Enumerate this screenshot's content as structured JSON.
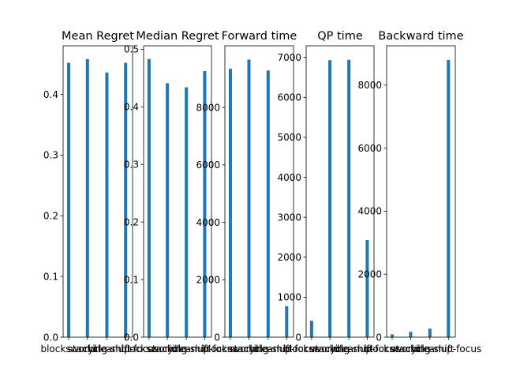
{
  "figure": {
    "background": "#ffffff",
    "bar_color": "#1f77b4"
  },
  "chart_data": [
    {
      "type": "bar",
      "title": "Mean Regret",
      "categories": [
        "blocksworld",
        "stacking",
        "cycle-shift",
        "cleanup-focus"
      ],
      "values": [
        0.452,
        0.458,
        0.436,
        0.452
      ],
      "ylim": [
        0,
        0.48
      ],
      "yticks": [
        "0.0",
        "0.1",
        "0.2",
        "0.3",
        "0.4"
      ],
      "ytick_values": [
        0,
        0.1,
        0.2,
        0.3,
        0.4
      ],
      "xlabel": "",
      "ylabel": ""
    },
    {
      "type": "bar",
      "title": "Median Regret",
      "categories": [
        "blocksworld",
        "stacking",
        "cycle-shift",
        "cleanup-focus"
      ],
      "values": [
        0.483,
        0.441,
        0.434,
        0.462
      ],
      "ylim": [
        0,
        0.506
      ],
      "yticks": [
        "0.0",
        "0.1",
        "0.2",
        "0.3",
        "0.4",
        "0.5"
      ],
      "ytick_values": [
        0,
        0.1,
        0.2,
        0.3,
        0.4,
        0.5
      ],
      "xlabel": "",
      "ylabel": ""
    },
    {
      "type": "bar",
      "title": "Forward time",
      "categories": [
        "blocksworld",
        "stacking",
        "cycle-shift",
        "cleanup-focus"
      ],
      "values": [
        9350,
        9670,
        9290,
        1080
      ],
      "ylim": [
        0,
        10150
      ],
      "yticks": [
        "0",
        "2000",
        "4000",
        "6000",
        "8000"
      ],
      "ytick_values": [
        0,
        2000,
        4000,
        6000,
        8000
      ],
      "xlabel": "",
      "ylabel": ""
    },
    {
      "type": "bar",
      "title": "QP time",
      "categories": [
        "blocksworld",
        "stacking",
        "cycle-shift",
        "cleanup-focus"
      ],
      "values": [
        410,
        6930,
        6940,
        2430
      ],
      "ylim": [
        0,
        7290
      ],
      "yticks": [
        "0",
        "1000",
        "2000",
        "3000",
        "4000",
        "5000",
        "6000",
        "7000"
      ],
      "ytick_values": [
        0,
        1000,
        2000,
        3000,
        4000,
        5000,
        6000,
        7000
      ],
      "xlabel": "",
      "ylabel": ""
    },
    {
      "type": "bar",
      "title": "Backward time",
      "categories": [
        "blocksworld",
        "stacking",
        "cycle-shift",
        "cleanup-focus"
      ],
      "values": [
        90,
        170,
        270,
        8800
      ],
      "ylim": [
        0,
        9250
      ],
      "yticks": [
        "0",
        "2000",
        "4000",
        "6000",
        "8000"
      ],
      "ytick_values": [
        0,
        2000,
        4000,
        6000,
        8000
      ],
      "xlabel": "",
      "ylabel": ""
    }
  ]
}
